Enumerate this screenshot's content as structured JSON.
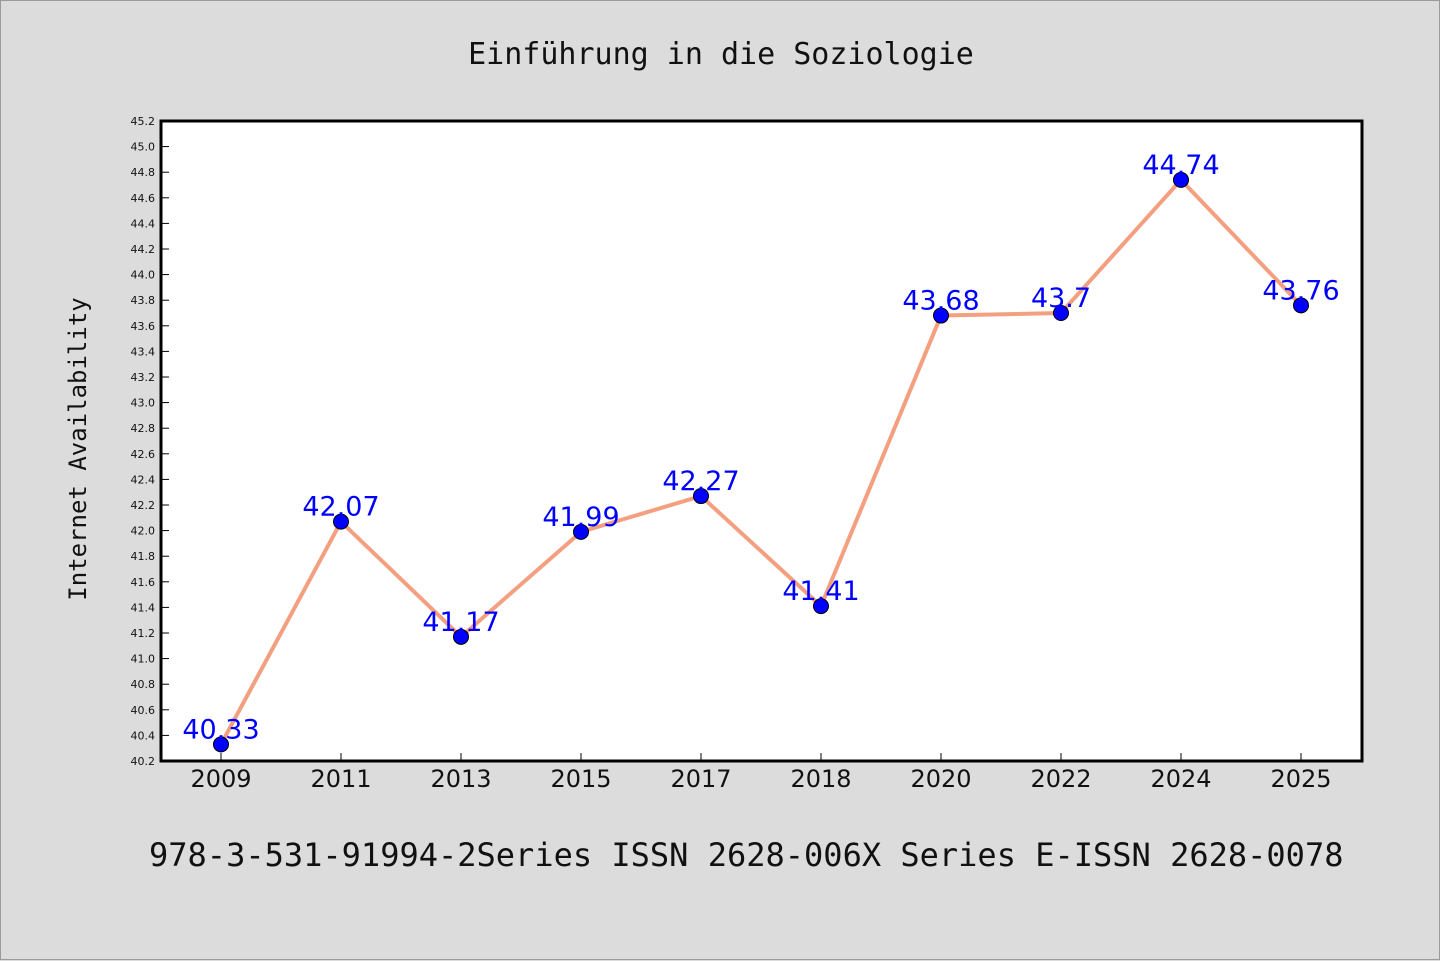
{
  "chart_data": {
    "type": "line",
    "title": "Einführung in die Soziologie",
    "xlabel": "",
    "ylabel": "Internet Availability",
    "categories": [
      "2009",
      "2011",
      "2013",
      "2015",
      "2017",
      "2018",
      "2020",
      "2022",
      "2024",
      "2025"
    ],
    "series": [
      {
        "values": [
          40.33,
          42.07,
          41.17,
          41.99,
          42.27,
          41.41,
          43.68,
          43.7,
          44.74,
          43.76
        ],
        "data_labels": [
          "40.33",
          "42.07",
          "41.17",
          "41.99",
          "42.27",
          "41.41",
          "43.68",
          "43.7",
          "44.74",
          "43.76"
        ],
        "line_color": "#f4a080",
        "marker_color": "#0000ff"
      }
    ],
    "ylim": [
      40.2,
      45.2
    ],
    "ytick_step": 0.2,
    "grid": false,
    "legend": "none",
    "footer": "978-3-531-91994-2Series ISSN 2628-006X Series E-ISSN 2628-0078"
  }
}
